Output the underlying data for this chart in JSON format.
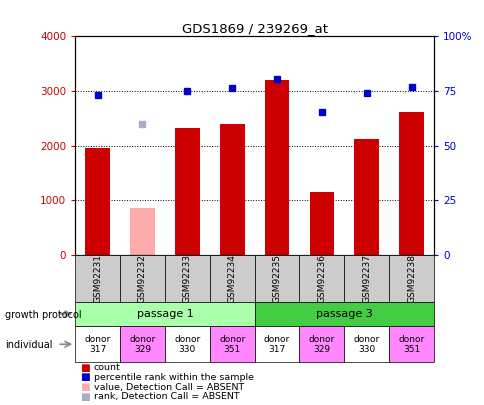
{
  "title": "GDS1869 / 239269_at",
  "samples": [
    "GSM92231",
    "GSM92232",
    "GSM92233",
    "GSM92234",
    "GSM92235",
    "GSM92236",
    "GSM92237",
    "GSM92238"
  ],
  "count_values": [
    1960,
    null,
    2330,
    2400,
    3210,
    1150,
    2130,
    2620
  ],
  "count_absent": [
    null,
    870,
    null,
    null,
    null,
    null,
    null,
    null
  ],
  "rank_values": [
    2920,
    null,
    3000,
    3060,
    3230,
    2620,
    2960,
    3080
  ],
  "rank_absent": [
    null,
    2400,
    null,
    null,
    null,
    null,
    null,
    null
  ],
  "ylim_left": [
    0,
    4000
  ],
  "ylim_right": [
    0,
    100
  ],
  "yticks_left": [
    0,
    1000,
    2000,
    3000,
    4000
  ],
  "ytick_labels_left": [
    "0",
    "1000",
    "2000",
    "3000",
    "4000"
  ],
  "yticks_right": [
    0,
    25,
    50,
    75,
    100
  ],
  "ytick_labels_right": [
    "0",
    "25",
    "50",
    "75",
    "100%"
  ],
  "bar_color": "#cc0000",
  "bar_absent_color": "#ffaaaa",
  "rank_color": "#0000cc",
  "rank_absent_color": "#aaaacc",
  "bg_color": "#ffffff",
  "plot_bg": "#ffffff",
  "passage1_color": "#aaffaa",
  "passage3_color": "#44cc44",
  "individual_colors": [
    "#ffffff",
    "#ff88ff",
    "#ffffff",
    "#ff88ff",
    "#ffffff",
    "#ff88ff",
    "#ffffff",
    "#ff88ff"
  ],
  "passage1_label": "passage 1",
  "passage3_label": "passage 3",
  "individuals": [
    "donor\n317",
    "donor\n329",
    "donor\n330",
    "donor\n351",
    "donor\n317",
    "donor\n329",
    "donor\n330",
    "donor\n351"
  ],
  "legend_items": [
    {
      "label": "count",
      "color": "#cc0000"
    },
    {
      "label": "percentile rank within the sample",
      "color": "#0000cc"
    },
    {
      "label": "value, Detection Call = ABSENT",
      "color": "#ffaaaa"
    },
    {
      "label": "rank, Detection Call = ABSENT",
      "color": "#aaaacc"
    }
  ],
  "left_label_color": "#cc0000",
  "right_label_color": "#0000cc",
  "arrow_color": "#888888",
  "xtick_bg": "#cccccc"
}
